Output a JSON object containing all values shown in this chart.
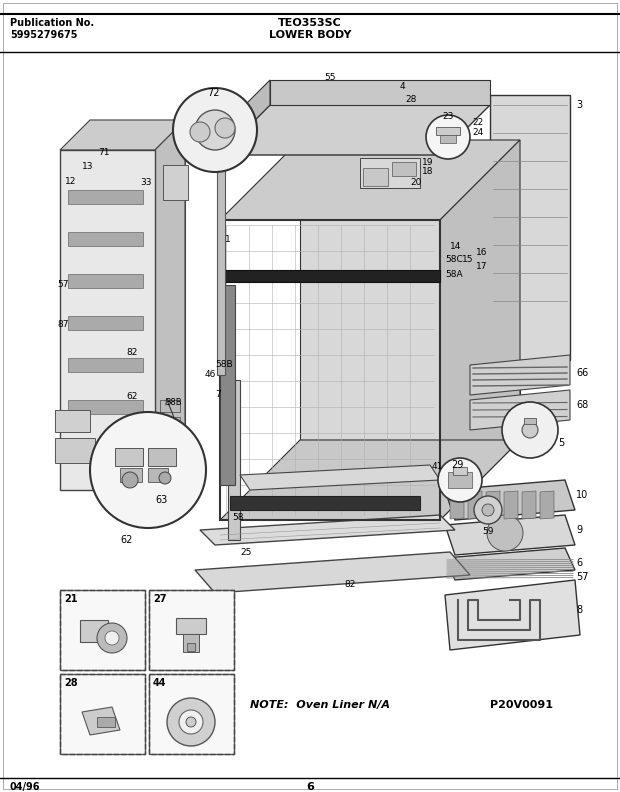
{
  "title_model": "TEO353SC",
  "title_section": "LOWER BODY",
  "pub_no_label": "Publication No.",
  "pub_no_value": "5995279675",
  "date": "04/96",
  "page": "6",
  "note": "NOTE:  Oven Liner N/A",
  "part_id": "P20V0091",
  "bg_color": "#ffffff",
  "text_color": "#000000",
  "fig_width": 6.2,
  "fig_height": 7.92,
  "dpi": 100
}
